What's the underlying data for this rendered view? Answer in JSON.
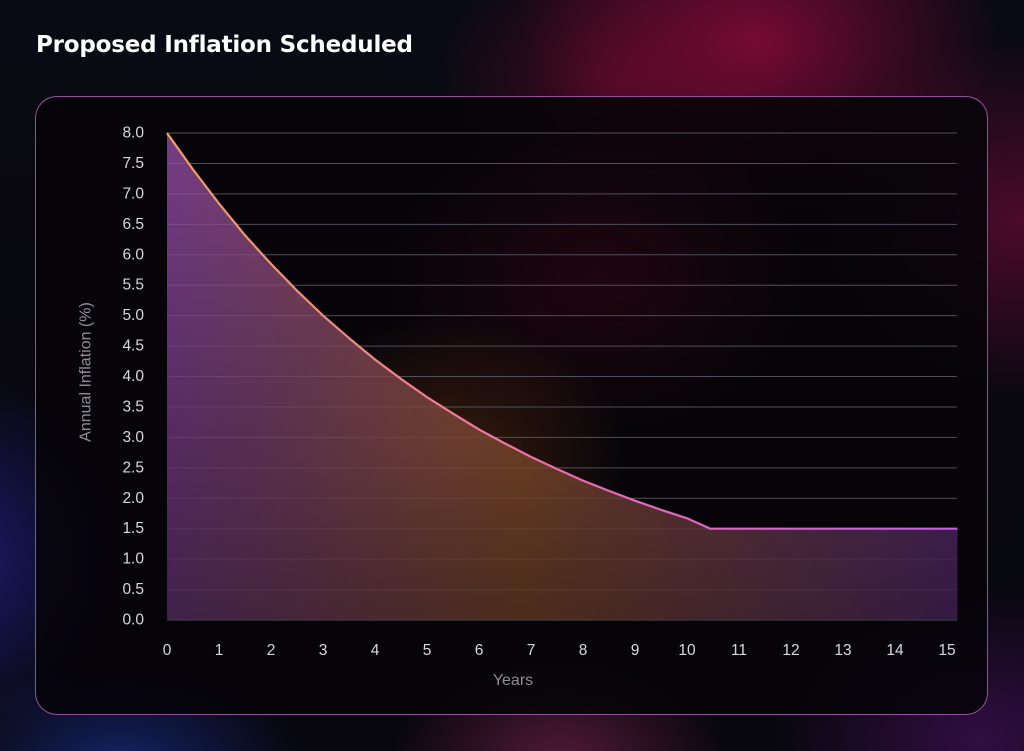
{
  "page": {
    "title": "Proposed Inflation Scheduled"
  },
  "chart_data": {
    "type": "area",
    "title": "Proposed Inflation Scheduled",
    "xlabel": "Years",
    "ylabel": "Annual Inflation (%)",
    "xlim": [
      0,
      15.2
    ],
    "ylim": [
      0,
      8.0
    ],
    "x_ticks": [
      "0",
      "1",
      "2",
      "3",
      "4",
      "5",
      "6",
      "7",
      "8",
      "9",
      "10",
      "11",
      "12",
      "13",
      "14",
      "15"
    ],
    "y_ticks": [
      "0.0",
      "0.5",
      "1.0",
      "1.5",
      "2.0",
      "2.5",
      "3.0",
      "3.5",
      "4.0",
      "4.5",
      "5.0",
      "5.5",
      "6.0",
      "6.5",
      "7.0",
      "7.5",
      "8.0"
    ],
    "grid": "horizontal",
    "series": [
      {
        "x": [
          0,
          0.5,
          1,
          1.5,
          2,
          2.5,
          3,
          3.5,
          4,
          4.5,
          5,
          5.5,
          6,
          6.5,
          7,
          7.5,
          8,
          8.5,
          9,
          9.5,
          10,
          10.45,
          11,
          12,
          13,
          14,
          15,
          15.2
        ],
        "values": [
          8.0,
          7.4,
          6.84,
          6.32,
          5.85,
          5.41,
          5.0,
          4.63,
          4.28,
          3.96,
          3.66,
          3.39,
          3.13,
          2.9,
          2.68,
          2.48,
          2.29,
          2.12,
          1.96,
          1.81,
          1.67,
          1.5,
          1.5,
          1.5,
          1.5,
          1.5,
          1.5,
          1.5
        ]
      }
    ],
    "colors": {
      "line_start": "#f2a25a",
      "line_mid": "#ec6cb0",
      "line_end": "#c95ae6",
      "fill_top": "#9a4fb0",
      "fill_mid": "#c07040",
      "fill_bottom": "#7a3d9a",
      "grid": "#5c5c66"
    }
  }
}
